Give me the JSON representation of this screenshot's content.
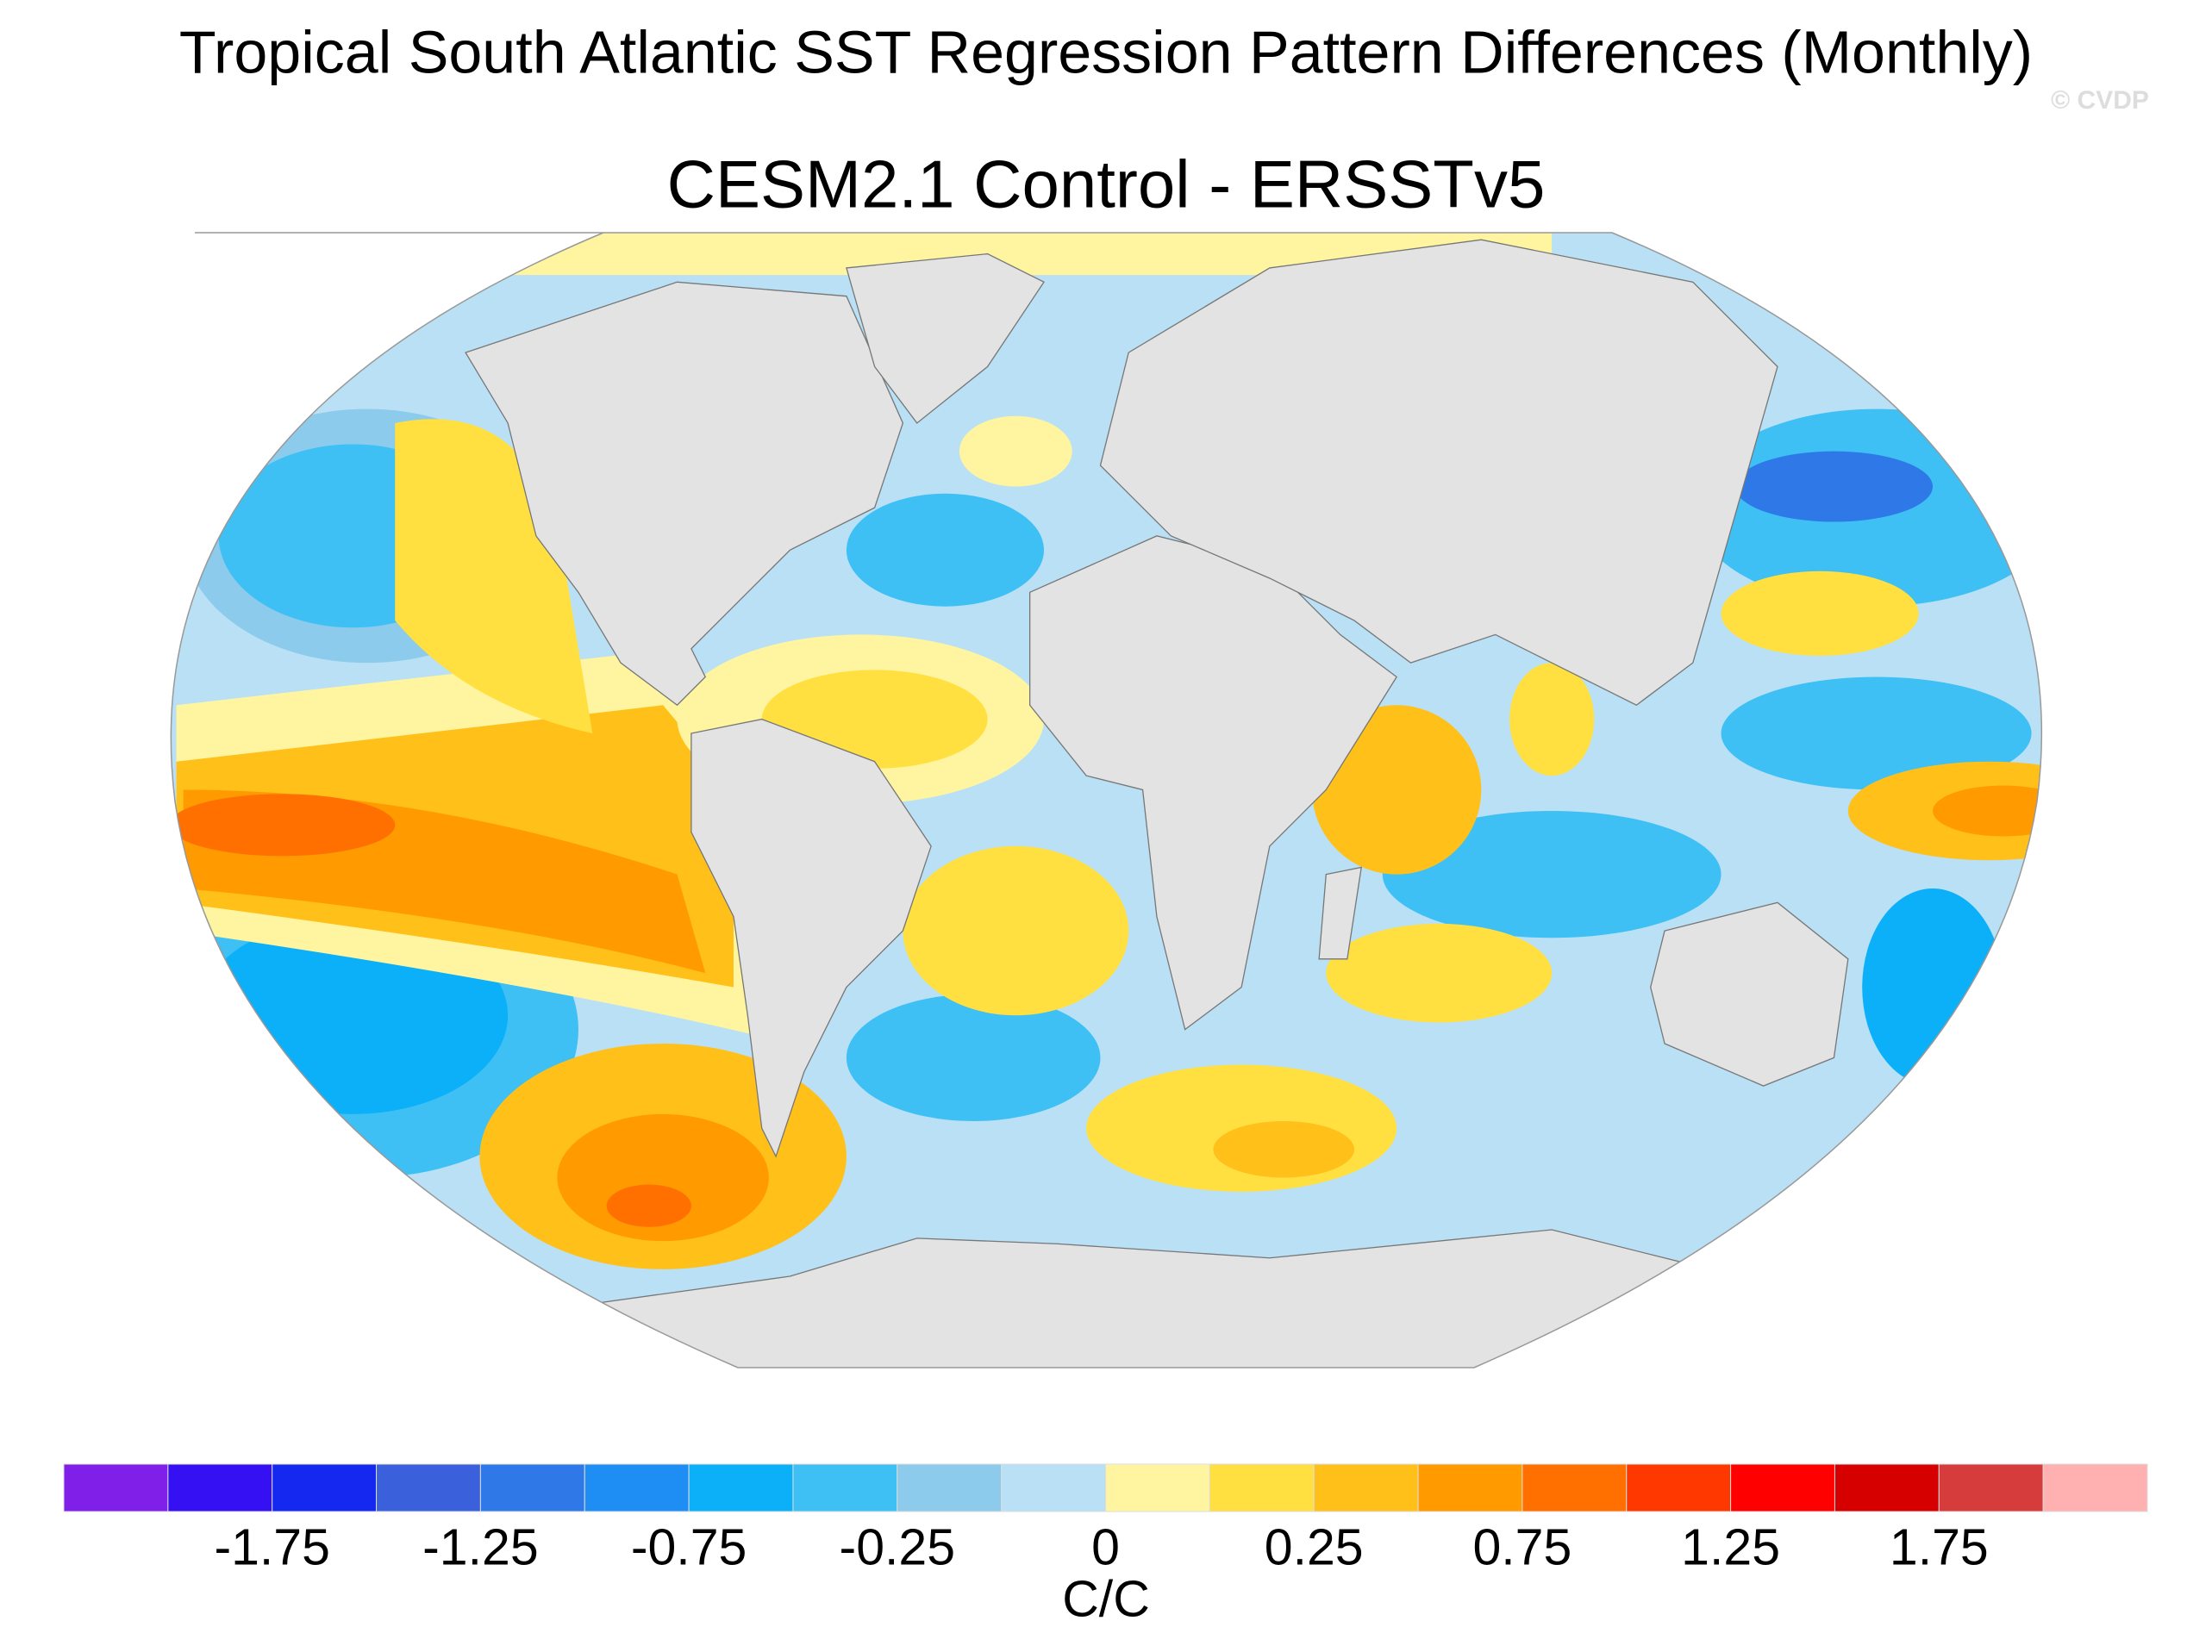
{
  "header": {
    "title": "Tropical South Atlantic SST Regression Pattern Differences (Monthly)",
    "watermark": "© CVDP"
  },
  "chart_data": {
    "type": "map",
    "title": "CESM2.1 Control - ERSSTv5",
    "colorbar": {
      "colors": [
        "#7f1fe8",
        "#3410f2",
        "#1428f0",
        "#3a60dc",
        "#2f78e8",
        "#1e8ef5",
        "#0bb0f8",
        "#3ec0f5",
        "#8ccbeb",
        "#b9e0f5",
        "#fff5a0",
        "#ffe040",
        "#ffc01a",
        "#ff9a00",
        "#ff7000",
        "#ff3800",
        "#ff0000",
        "#d60000",
        "#d63c3c",
        "#ffb0b0"
      ],
      "levels": [
        -2,
        -1.75,
        -1.5,
        -1.25,
        -1,
        -0.75,
        -0.5,
        -0.25,
        -0.1,
        0,
        0.1,
        0.25,
        0.5,
        0.75,
        1,
        1.25,
        1.5,
        1.75,
        2
      ],
      "ticks": [
        -1.75,
        -1.25,
        -0.75,
        -0.25,
        0,
        0.25,
        0.75,
        1.25,
        1.75
      ],
      "label": "C/C"
    }
  }
}
